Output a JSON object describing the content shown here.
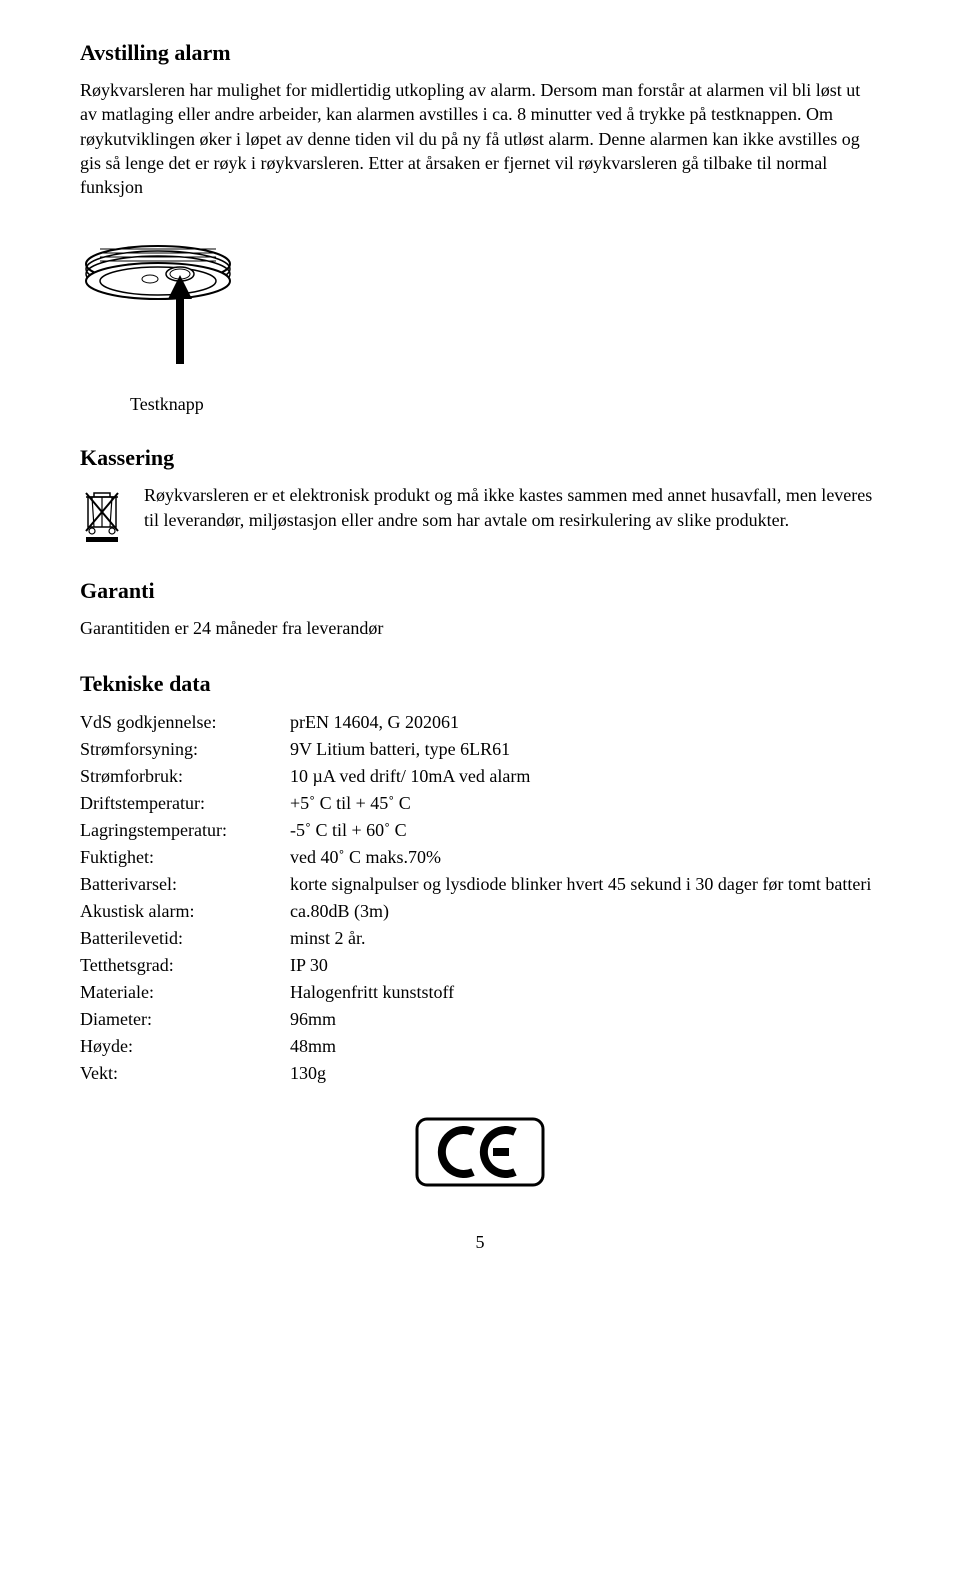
{
  "s1": {
    "heading": "Avstilling alarm",
    "body": "Røykvarsleren har mulighet for midlertidig utkopling av alarm. Dersom man forstår at alarmen vil bli løst ut av matlaging eller andre arbeider, kan alarmen avstilles i ca. 8 minutter ved å trykke på testknappen. Om røykutviklingen øker i løpet av denne tiden vil du på ny få utløst alarm. Denne alarmen kan ikke avstilles og gis så lenge det er røyk i røykvarsleren. Etter at årsaken er fjernet vil røykvarsleren gå tilbake til normal funksjon",
    "caption": "Testknapp"
  },
  "s2": {
    "heading": "Kassering",
    "body": "Røykvarsleren er et elektronisk produkt og må ikke kastes sammen med annet husavfall, men leveres til leverandør, miljøstasjon eller andre som har avtale om resirkulering av slike produkter."
  },
  "s3": {
    "heading": "Garanti",
    "body": "Garantitiden er 24 måneder fra leverandør"
  },
  "s4": {
    "heading": "Tekniske data",
    "rows": [
      {
        "label": "VdS godkjennelse:",
        "value": "prEN 14604, G 202061"
      },
      {
        "label": "Strømforsyning:",
        "value": "9V Litium batteri, type 6LR61"
      },
      {
        "label": "Strømforbruk:",
        "value": "10 µA ved drift/ 10mA ved alarm"
      },
      {
        "label": "Driftstemperatur:",
        "value": "+5˚ C til + 45˚ C"
      },
      {
        "label": "Lagringstemperatur:",
        "value": "-5˚ C  til + 60˚ C"
      },
      {
        "label": "Fuktighet:",
        "value": "ved 40˚ C maks.70%"
      },
      {
        "label": "Batterivarsel:",
        "value": "korte signalpulser og lysdiode blinker hvert 45 sekund i 30 dager før tomt batteri"
      },
      {
        "label": "Akustisk alarm:",
        "value": "ca.80dB (3m)"
      },
      {
        "label": "Batterilevetid:",
        "value": "minst 2 år."
      },
      {
        "label": "Tetthetsgrad:",
        "value": "IP 30"
      },
      {
        "label": "Materiale:",
        "value": "Halogenfritt kunststoff"
      },
      {
        "label": "Diameter:",
        "value": "96mm"
      },
      {
        "label": "Høyde:",
        "value": "48mm"
      },
      {
        "label": "Vekt:",
        "value": "130g"
      }
    ]
  },
  "pageNumber": "5"
}
